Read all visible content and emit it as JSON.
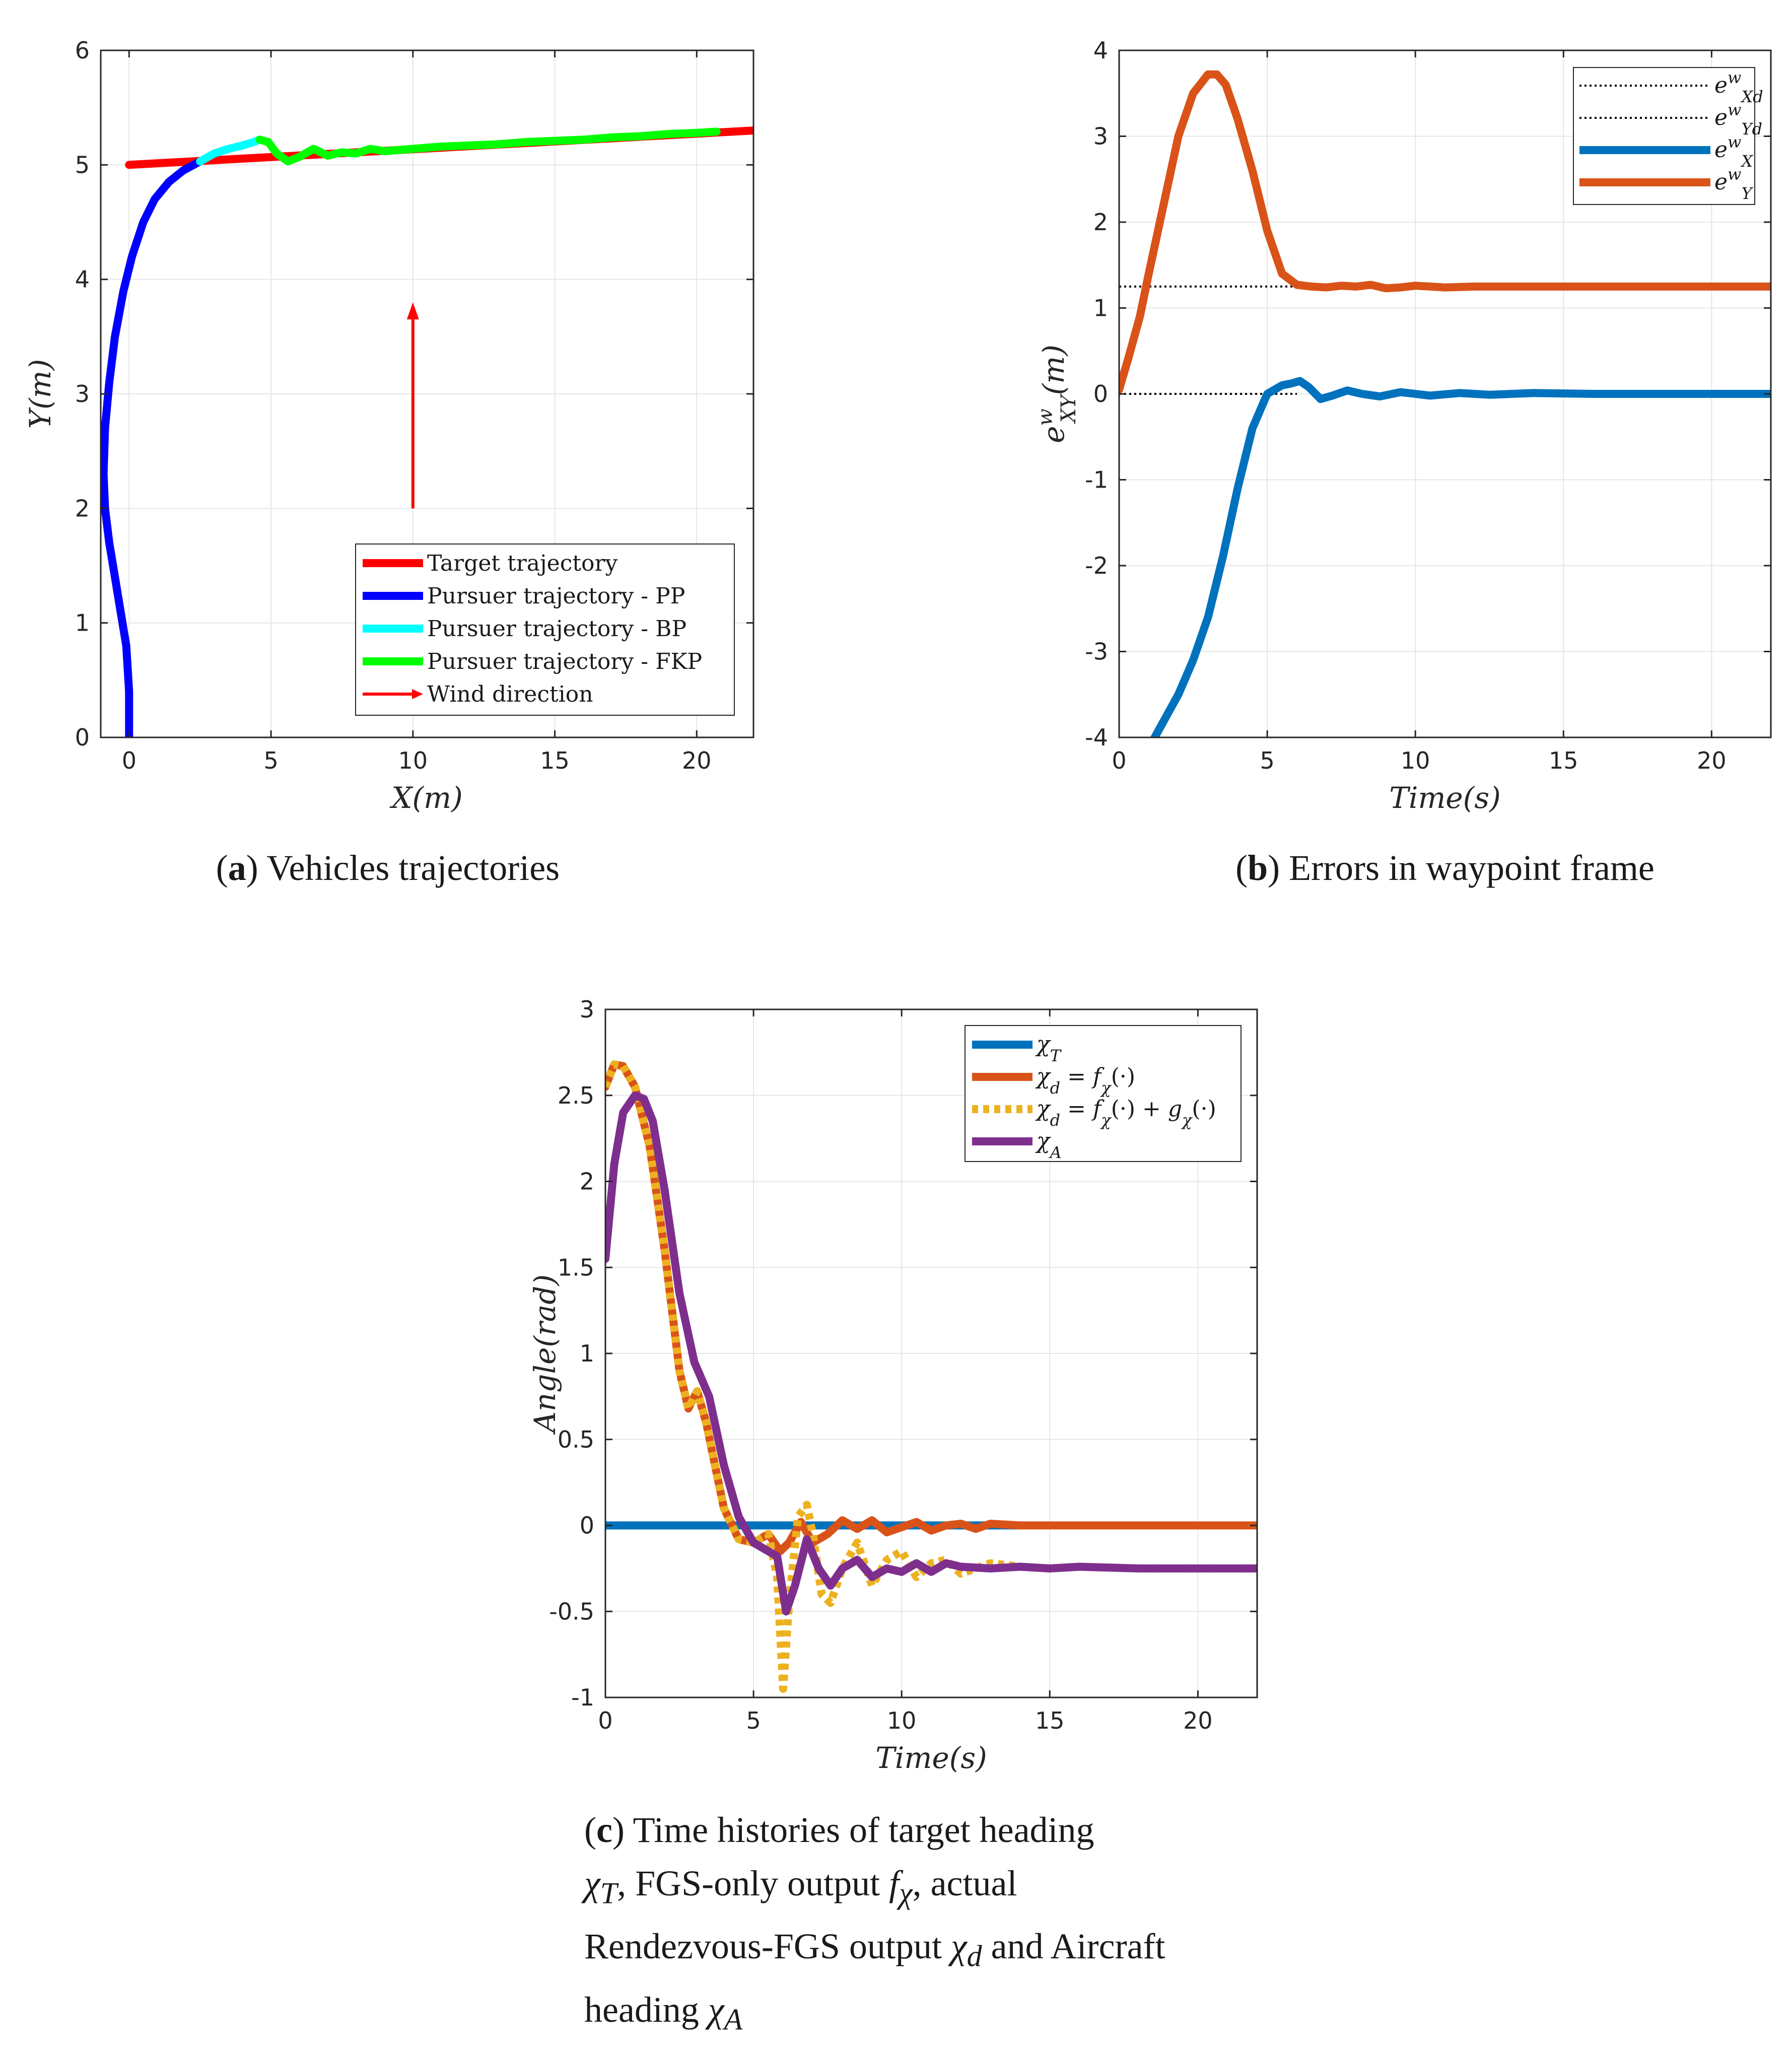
{
  "colors": {
    "target": "#ff0000",
    "pp": "#0000ff",
    "bp": "#00ffff",
    "fkp": "#00ff00",
    "wind": "#ff0000",
    "ex": "#0072bd",
    "ey": "#d95319",
    "chiT": "#0072bd",
    "chid_f": "#d95319",
    "chid_fg": "#edb120",
    "chiA": "#7e2f8e",
    "dotted": "#000000"
  },
  "captions": {
    "a": {
      "letter": "a",
      "text": "Vehicles trajectories"
    },
    "b": {
      "letter": "b",
      "text": "Errors in waypoint frame"
    },
    "c": {
      "letter": "c",
      "line1": "Time histories of target heading",
      "line2a": "χ",
      "line2b": "T",
      "line2c": ", FGS-only output ",
      "line2d": "f",
      "line2e": "χ",
      "line2f": ", actual",
      "line3a": "Rendezvous-FGS output ",
      "line3b": "χ",
      "line3c": "d",
      "line3d": " and Aircraft",
      "line4a": "heading ",
      "line4b": "χ",
      "line4c": "A"
    }
  },
  "chart_data": [
    {
      "id": "a",
      "type": "line",
      "xlabel": "X(m)",
      "ylabel": "Y(m)",
      "xlim": [
        -1,
        22
      ],
      "ylim": [
        0,
        6
      ],
      "xticks": [
        0,
        5,
        10,
        15,
        20
      ],
      "yticks": [
        0,
        1,
        2,
        3,
        4,
        5,
        6
      ],
      "grid": true,
      "legend_position": "bottom-right",
      "series": [
        {
          "name": "Target trajectory",
          "color": "#ff0000",
          "x": [
            0,
            22
          ],
          "y": [
            5.0,
            5.3
          ]
        },
        {
          "name": "Pursuer trajectory - PP",
          "color": "#0000ff",
          "x": [
            0,
            0.0,
            -0.1,
            -0.3,
            -0.5,
            -0.7,
            -0.85,
            -0.9,
            -0.85,
            -0.7,
            -0.5,
            -0.2,
            0.1,
            0.5,
            0.9,
            1.4,
            1.9,
            2.5
          ],
          "y": [
            0,
            0.4,
            0.8,
            1.1,
            1.4,
            1.7,
            2.0,
            2.3,
            2.7,
            3.1,
            3.5,
            3.9,
            4.2,
            4.5,
            4.7,
            4.85,
            4.95,
            5.03
          ]
        },
        {
          "name": "Pursuer trajectory - BP",
          "color": "#00ffff",
          "x": [
            2.5,
            3.0,
            3.5,
            4.0,
            4.4,
            4.6
          ],
          "y": [
            5.03,
            5.1,
            5.14,
            5.17,
            5.2,
            5.22
          ]
        },
        {
          "name": "Pursuer trajectory - FKP",
          "color": "#00ff00",
          "x": [
            4.6,
            4.9,
            5.2,
            5.6,
            6.0,
            6.5,
            7.0,
            7.5,
            8.0,
            8.5,
            9.0,
            9.5,
            10.0,
            11.0,
            12.0,
            13.0,
            14.0,
            15.0,
            16.0,
            17.0,
            18.0,
            19.0,
            20.0,
            20.7
          ],
          "y": [
            5.22,
            5.2,
            5.1,
            5.03,
            5.07,
            5.14,
            5.08,
            5.11,
            5.1,
            5.14,
            5.12,
            5.13,
            5.14,
            5.16,
            5.17,
            5.18,
            5.2,
            5.21,
            5.22,
            5.24,
            5.25,
            5.27,
            5.28,
            5.29
          ]
        },
        {
          "name": "Wind direction",
          "color": "#ff0000",
          "kind": "arrow",
          "x": [
            10,
            10
          ],
          "y": [
            2.0,
            3.8
          ]
        }
      ]
    },
    {
      "id": "b",
      "type": "line",
      "xlabel": "Time(s)",
      "ylabel": "e^w_XY(m)",
      "xlim": [
        0,
        22
      ],
      "ylim": [
        -4,
        4
      ],
      "xticks": [
        0,
        5,
        10,
        15,
        20
      ],
      "yticks": [
        -4,
        -3,
        -2,
        -1,
        0,
        1,
        2,
        3,
        4
      ],
      "grid": true,
      "legend_position": "top-right",
      "series": [
        {
          "name": "e^w_Xd",
          "color": "#000000",
          "style": "dotted",
          "x": [
            0,
            6
          ],
          "y": [
            0,
            0
          ]
        },
        {
          "name": "e^w_Yd",
          "color": "#000000",
          "style": "dotted",
          "x": [
            0,
            6
          ],
          "y": [
            1.25,
            1.25
          ]
        },
        {
          "name": "e^w_X",
          "color": "#0072bd",
          "x": [
            1.2,
            1.6,
            2.0,
            2.5,
            3.0,
            3.5,
            4.0,
            4.5,
            5.0,
            5.5,
            5.8,
            6.1,
            6.4,
            6.8,
            7.2,
            7.7,
            8.2,
            8.8,
            9.5,
            10.5,
            11.5,
            12.5,
            14,
            16,
            18,
            20,
            22
          ],
          "y": [
            -4.0,
            -3.75,
            -3.5,
            -3.1,
            -2.6,
            -1.9,
            -1.1,
            -0.4,
            0.0,
            0.1,
            0.12,
            0.15,
            0.08,
            -0.06,
            -0.02,
            0.04,
            0.0,
            -0.03,
            0.02,
            -0.02,
            0.01,
            -0.01,
            0.01,
            0.0,
            0.0,
            0.0,
            0.0
          ]
        },
        {
          "name": "e^w_Y",
          "color": "#d95319",
          "x": [
            0,
            0.3,
            0.7,
            1.0,
            1.5,
            2.0,
            2.5,
            3.0,
            3.3,
            3.6,
            4.0,
            4.5,
            5.0,
            5.5,
            6.0,
            6.5,
            7.0,
            7.5,
            8.0,
            8.5,
            9.0,
            9.5,
            10.0,
            11.0,
            12.0,
            13.0,
            15.0,
            18.0,
            22.0
          ],
          "y": [
            0.05,
            0.4,
            0.9,
            1.4,
            2.2,
            3.0,
            3.5,
            3.72,
            3.72,
            3.6,
            3.2,
            2.6,
            1.9,
            1.4,
            1.27,
            1.25,
            1.24,
            1.26,
            1.25,
            1.27,
            1.23,
            1.24,
            1.26,
            1.24,
            1.25,
            1.25,
            1.25,
            1.25,
            1.25
          ]
        }
      ]
    },
    {
      "id": "c",
      "type": "line",
      "xlabel": "Time(s)",
      "ylabel": "Angle(rad)",
      "xlim": [
        0,
        22
      ],
      "ylim": [
        -1,
        3
      ],
      "xticks": [
        0,
        5,
        10,
        15,
        20
      ],
      "yticks": [
        -1,
        -0.5,
        0,
        0.5,
        1,
        1.5,
        2,
        2.5,
        3
      ],
      "ytick_labels": [
        "-1",
        "-0.5",
        "0",
        "0.5",
        "1",
        "1.5",
        "2",
        "2.5",
        "3"
      ],
      "grid": true,
      "legend_position": "top-right",
      "series": [
        {
          "name": "χT",
          "color": "#0072bd",
          "x": [
            0,
            22
          ],
          "y": [
            0.0,
            0.0
          ]
        },
        {
          "name": "χd = fχ(·)",
          "color": "#d95319",
          "x": [
            0,
            0.3,
            0.6,
            1.0,
            1.5,
            2.0,
            2.5,
            2.8,
            3.1,
            3.4,
            3.7,
            4.0,
            4.5,
            5.0,
            5.5,
            5.9,
            6.2,
            6.6,
            7.0,
            7.5,
            8.0,
            8.5,
            9.0,
            9.5,
            10.0,
            10.5,
            11.0,
            11.5,
            12.0,
            12.5,
            13.0,
            14.0,
            15.0,
            16.0,
            18.0,
            22.0
          ],
          "y": [
            2.55,
            2.68,
            2.67,
            2.55,
            2.2,
            1.6,
            0.9,
            0.68,
            0.78,
            0.6,
            0.35,
            0.1,
            -0.08,
            -0.1,
            -0.05,
            -0.15,
            -0.1,
            0.02,
            -0.1,
            -0.05,
            0.03,
            -0.02,
            0.03,
            -0.04,
            -0.01,
            0.02,
            -0.03,
            0.0,
            0.01,
            -0.02,
            0.01,
            0.0,
            0.0,
            0.0,
            0.0,
            0.0
          ]
        },
        {
          "name": "χd = fχ(·) + gχ(·)",
          "color": "#edb120",
          "style": "dotted",
          "x": [
            0,
            0.3,
            0.6,
            1.0,
            1.5,
            2.0,
            2.5,
            2.8,
            3.1,
            3.4,
            3.7,
            4.0,
            4.5,
            5.0,
            5.5,
            5.8,
            6.0,
            6.2,
            6.5,
            6.8,
            7.0,
            7.3,
            7.6,
            8.0,
            8.5,
            9.0,
            9.5,
            10.0,
            10.5,
            11.0,
            11.5,
            12.0,
            13.0,
            14.0,
            15.0,
            16.0,
            18.0,
            22.0
          ],
          "y": [
            2.55,
            2.68,
            2.67,
            2.55,
            2.2,
            1.6,
            0.9,
            0.68,
            0.78,
            0.6,
            0.35,
            0.1,
            -0.08,
            -0.1,
            -0.05,
            -0.3,
            -0.95,
            -0.45,
            0.05,
            0.12,
            -0.05,
            -0.4,
            -0.45,
            -0.25,
            -0.1,
            -0.35,
            -0.2,
            -0.15,
            -0.3,
            -0.22,
            -0.2,
            -0.28,
            -0.22,
            -0.24,
            -0.25,
            -0.24,
            -0.25,
            -0.25
          ]
        },
        {
          "name": "χA",
          "color": "#7e2f8e",
          "x": [
            0,
            0.3,
            0.6,
            1.0,
            1.3,
            1.6,
            2.0,
            2.5,
            3.0,
            3.5,
            4.0,
            4.5,
            5.0,
            5.5,
            5.8,
            6.1,
            6.4,
            6.8,
            7.2,
            7.6,
            8.0,
            8.5,
            9.0,
            9.5,
            10.0,
            10.5,
            11.0,
            11.5,
            12.0,
            13.0,
            14.0,
            15.0,
            16.0,
            18.0,
            22.0
          ],
          "y": [
            1.55,
            2.1,
            2.4,
            2.5,
            2.48,
            2.35,
            1.95,
            1.35,
            0.95,
            0.75,
            0.35,
            0.05,
            -0.1,
            -0.15,
            -0.18,
            -0.5,
            -0.35,
            -0.08,
            -0.25,
            -0.35,
            -0.25,
            -0.2,
            -0.3,
            -0.25,
            -0.27,
            -0.22,
            -0.27,
            -0.22,
            -0.24,
            -0.25,
            -0.24,
            -0.25,
            -0.24,
            -0.25,
            -0.25
          ]
        }
      ]
    }
  ]
}
